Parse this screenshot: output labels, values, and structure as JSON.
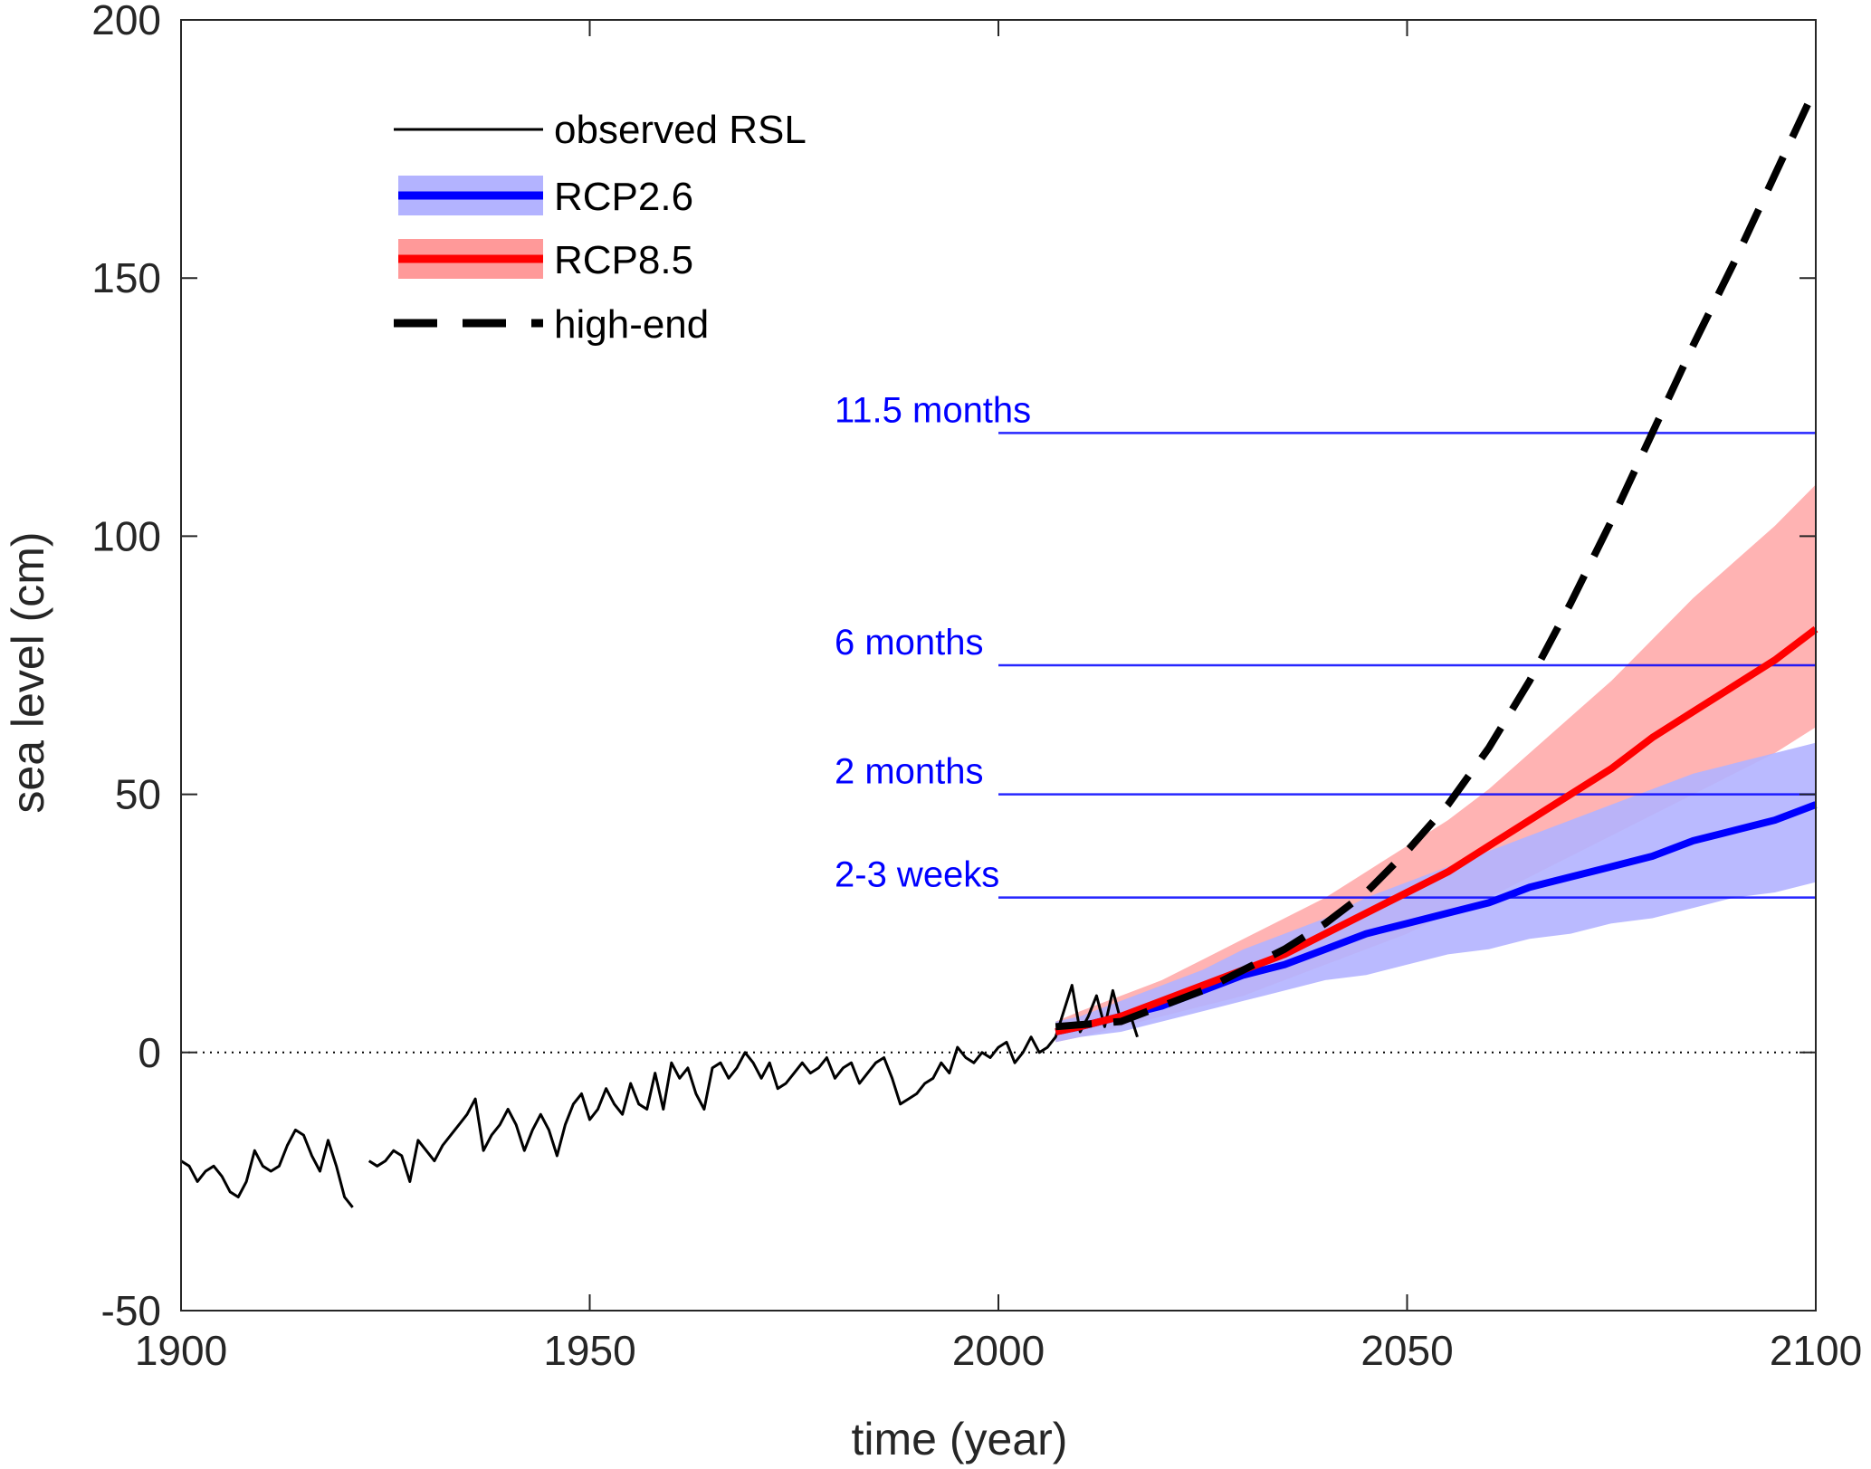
{
  "chart_data": {
    "type": "line",
    "title": "",
    "xlabel": "time (year)",
    "ylabel": "sea level (cm)",
    "xlim": [
      1900,
      2100
    ],
    "ylim": [
      -50,
      200
    ],
    "xticks": [
      1900,
      1950,
      2000,
      2050,
      2100
    ],
    "yticks": [
      -50,
      0,
      50,
      100,
      150,
      200
    ],
    "xtick_labels": [
      "1900",
      "1950",
      "2000",
      "2050",
      "2100"
    ],
    "ytick_labels": [
      "-50",
      "0",
      "50",
      "100",
      "150",
      "200"
    ],
    "grid": false,
    "legend_position": "top-left",
    "legend": [
      {
        "key": "observed",
        "label": "observed RSL"
      },
      {
        "key": "rcp26",
        "label": "RCP2.6"
      },
      {
        "key": "rcp85",
        "label": "RCP8.5"
      },
      {
        "key": "highend",
        "label": "high-end"
      }
    ],
    "zero_reference": {
      "y": 0,
      "style": "dotted"
    },
    "colors": {
      "observed": "#000000",
      "rcp26_line": "#0000ff",
      "rcp26_band": "#b3b3ff",
      "rcp85_line": "#ff0000",
      "rcp85_band": "#ff8080",
      "highend": "#000000",
      "threshold": "#0000ff"
    },
    "thresholds": [
      {
        "label": "11.5 months",
        "value": 120,
        "x_start": 2000
      },
      {
        "label": "6 months",
        "value": 75,
        "x_start": 2000
      },
      {
        "label": "2 months",
        "value": 50,
        "x_start": 2000
      },
      {
        "label": "2-3 weeks",
        "value": 30,
        "x_start": 2000
      }
    ],
    "series": [
      {
        "name": "observed RSL",
        "segments": [
          {
            "x": [
              1900,
              1901,
              1902,
              1903,
              1904,
              1905,
              1906,
              1907,
              1908,
              1909,
              1910,
              1911,
              1912,
              1913,
              1914,
              1915,
              1916,
              1917,
              1918,
              1919,
              1920,
              1921
            ],
            "y": [
              -21,
              -22,
              -25,
              -23,
              -22,
              -24,
              -27,
              -28,
              -25,
              -19,
              -22,
              -23,
              -22,
              -18,
              -15,
              -16,
              -20,
              -23,
              -17,
              -22,
              -28,
              -30
            ]
          },
          {
            "x": [
              1923,
              1924,
              1925,
              1926,
              1927,
              1928,
              1929,
              1930,
              1931,
              1932,
              1933,
              1934,
              1935,
              1936,
              1937,
              1938,
              1939,
              1940,
              1941,
              1942,
              1943,
              1944,
              1945,
              1946,
              1947,
              1948,
              1949,
              1950,
              1951,
              1952,
              1953,
              1954,
              1955,
              1956,
              1957,
              1958,
              1959,
              1960,
              1961,
              1962,
              1963,
              1964,
              1965,
              1966,
              1967,
              1968,
              1969,
              1970,
              1971,
              1972,
              1973,
              1974,
              1975,
              1976,
              1977,
              1978,
              1979,
              1980,
              1981,
              1982,
              1983,
              1984,
              1985,
              1986,
              1987,
              1988,
              1989,
              1990,
              1991,
              1992,
              1993,
              1994,
              1995,
              1996,
              1997,
              1998,
              1999,
              2000,
              2001,
              2002,
              2003,
              2004,
              2005,
              2006,
              2007,
              2008,
              2009,
              2010,
              2011,
              2012,
              2013,
              2014,
              2015,
              2016,
              2017
            ],
            "y": [
              -21,
              -22,
              -21,
              -19,
              -20,
              -25,
              -17,
              -19,
              -21,
              -18,
              -16,
              -14,
              -12,
              -9,
              -19,
              -16,
              -14,
              -11,
              -14,
              -19,
              -15,
              -12,
              -15,
              -20,
              -14,
              -10,
              -8,
              -13,
              -11,
              -7,
              -10,
              -12,
              -6,
              -10,
              -11,
              -4,
              -11,
              -2,
              -5,
              -3,
              -8,
              -11,
              -3,
              -2,
              -5,
              -3,
              0,
              -2,
              -5,
              -2,
              -7,
              -6,
              -4,
              -2,
              -4,
              -3,
              -1,
              -5,
              -3,
              -2,
              -6,
              -4,
              -2,
              -1,
              -5,
              -10,
              -9,
              -8,
              -6,
              -5,
              -2,
              -4,
              1,
              -1,
              -2,
              0,
              -1,
              1,
              2,
              -2,
              0,
              3,
              0,
              1,
              3,
              8,
              13,
              4,
              7,
              11,
              5,
              12,
              6,
              8,
              3
            ]
          }
        ]
      },
      {
        "name": "RCP2.6",
        "x": [
          2007,
          2010,
          2015,
          2020,
          2025,
          2030,
          2035,
          2040,
          2045,
          2050,
          2055,
          2060,
          2065,
          2070,
          2075,
          2080,
          2085,
          2090,
          2095,
          2100
        ],
        "y": [
          4,
          5,
          7,
          9,
          12,
          15,
          17,
          20,
          23,
          25,
          27,
          29,
          32,
          34,
          36,
          38,
          41,
          43,
          45,
          48
        ],
        "lower": [
          2,
          3,
          4,
          6,
          8,
          10,
          12,
          14,
          15,
          17,
          19,
          20,
          22,
          23,
          25,
          26,
          28,
          30,
          31,
          33
        ],
        "upper": [
          6,
          7,
          10,
          13,
          16,
          20,
          23,
          26,
          30,
          33,
          36,
          39,
          42,
          45,
          48,
          51,
          54,
          56,
          58,
          60
        ]
      },
      {
        "name": "RCP8.5",
        "x": [
          2007,
          2010,
          2015,
          2020,
          2025,
          2030,
          2035,
          2040,
          2045,
          2050,
          2055,
          2060,
          2065,
          2070,
          2075,
          2080,
          2085,
          2090,
          2095,
          2100
        ],
        "y": [
          4,
          5,
          7,
          10,
          13,
          16,
          19,
          23,
          27,
          31,
          35,
          40,
          45,
          50,
          55,
          61,
          66,
          71,
          76,
          82
        ],
        "lower": [
          2,
          3,
          5,
          7,
          9,
          11,
          14,
          17,
          20,
          23,
          27,
          30,
          34,
          38,
          42,
          46,
          50,
          54,
          58,
          63
        ],
        "upper": [
          6,
          8,
          11,
          14,
          18,
          22,
          26,
          30,
          35,
          40,
          45,
          51,
          58,
          65,
          72,
          80,
          88,
          95,
          102,
          110
        ]
      },
      {
        "name": "high-end",
        "x": [
          2007,
          2015,
          2020,
          2025,
          2030,
          2035,
          2040,
          2045,
          2050,
          2055,
          2060,
          2065,
          2070,
          2075,
          2080,
          2085,
          2090,
          2095,
          2100
        ],
        "y": [
          5,
          6,
          9,
          12,
          16,
          20,
          25,
          31,
          39,
          48,
          59,
          72,
          87,
          103,
          120,
          137,
          153,
          170,
          187
        ]
      }
    ]
  }
}
